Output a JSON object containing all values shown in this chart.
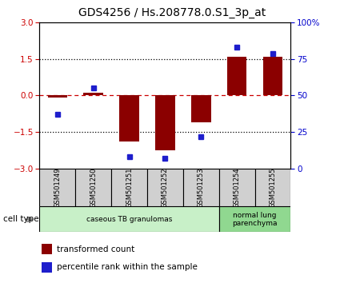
{
  "title": "GDS4256 / Hs.208778.0.S1_3p_at",
  "samples": [
    "GSM501249",
    "GSM501250",
    "GSM501251",
    "GSM501252",
    "GSM501253",
    "GSM501254",
    "GSM501255"
  ],
  "red_values": [
    -0.08,
    0.1,
    -1.9,
    -2.25,
    -1.1,
    1.6,
    1.6
  ],
  "blue_values": [
    37,
    55,
    8,
    7,
    22,
    83,
    79
  ],
  "ylim_left": [
    -3,
    3
  ],
  "ylim_right": [
    0,
    100
  ],
  "yticks_left": [
    -3,
    -1.5,
    0,
    1.5,
    3
  ],
  "yticks_right": [
    0,
    25,
    50,
    75,
    100
  ],
  "ytick_labels_right": [
    "0",
    "25",
    "50",
    "75",
    "100%"
  ],
  "red_color": "#8B0000",
  "blue_color": "#1E1ECC",
  "dotted_line_color": "#000000",
  "dashed_line_color": "#CC0000",
  "bar_width": 0.55,
  "cell_type_groups": [
    {
      "label": "caseous TB granulomas",
      "start": 0,
      "end": 5,
      "color": "#c8f0c8"
    },
    {
      "label": "normal lung\nparenchyma",
      "start": 5,
      "end": 7,
      "color": "#90d890"
    }
  ],
  "cell_type_label": "cell type",
  "legend_red": "transformed count",
  "legend_blue": "percentile rank within the sample",
  "background_color": "#ffffff",
  "plot_bg_color": "#ffffff",
  "tick_label_color_left": "#CC0000",
  "tick_label_color_right": "#0000CC",
  "title_fontsize": 10,
  "tick_fontsize": 7.5,
  "label_fontsize": 8
}
